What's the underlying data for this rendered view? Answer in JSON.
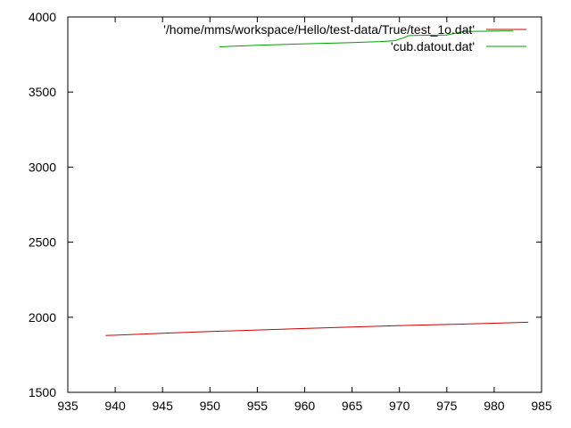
{
  "chart_data": {
    "type": "line",
    "title": "",
    "xlabel": "",
    "ylabel": "",
    "xlim": [
      935,
      985
    ],
    "ylim": [
      1500,
      4000
    ],
    "x_ticks": [
      935,
      940,
      945,
      950,
      955,
      960,
      965,
      970,
      975,
      980,
      985
    ],
    "y_ticks": [
      1500,
      2000,
      2500,
      3000,
      3500,
      4000
    ],
    "grid": false,
    "legend_position": "top-right",
    "series": [
      {
        "name": "'/home/mms/workspace/Hello/test-data/True/test_1o.dat'",
        "color": "#cc0000",
        "x": [
          939,
          945,
          950,
          955,
          960,
          965,
          970,
          975,
          980,
          983.6
        ],
        "y": [
          1878,
          1893,
          1905,
          1915,
          1925,
          1935,
          1945,
          1952,
          1960,
          1967
        ]
      },
      {
        "name": "'cub.datout.dat'",
        "color": "#00a000",
        "x": [
          951,
          955,
          960,
          965,
          968,
          969.5,
          970.5,
          971,
          973,
          975,
          976,
          977,
          979,
          981,
          982
        ],
        "y": [
          3801,
          3812,
          3821,
          3829,
          3836,
          3842,
          3862,
          3876,
          3878,
          3880,
          3893,
          3903,
          3905,
          3906,
          3906
        ]
      }
    ]
  }
}
